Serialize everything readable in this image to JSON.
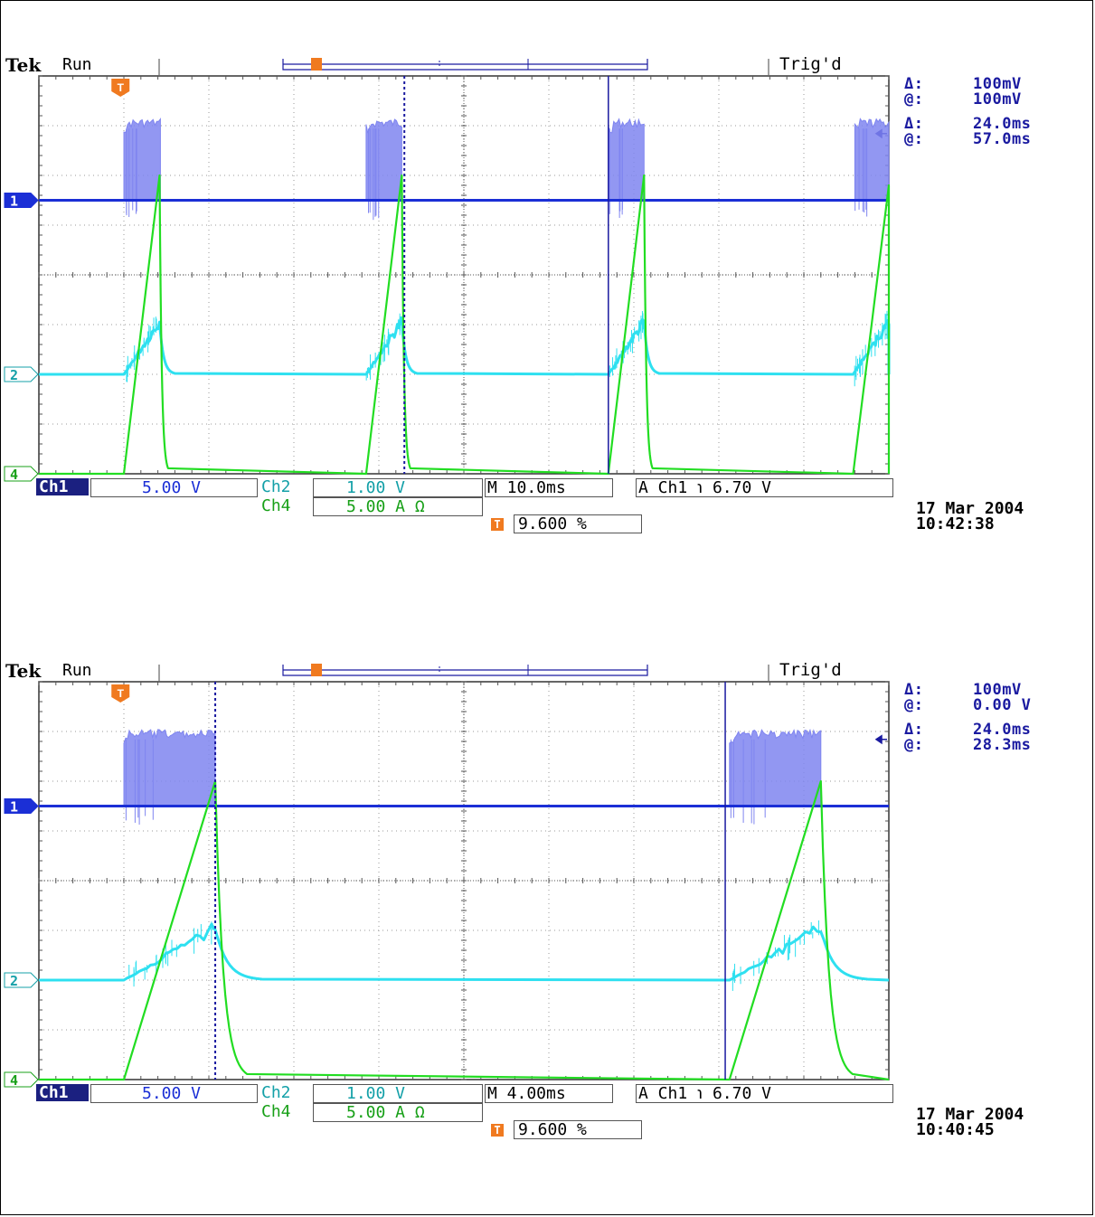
{
  "colors": {
    "ch1": "#1b2fd6",
    "ch1_burst": "#7f85f0",
    "ch2": "#2ee0f0",
    "ch4": "#22dd22",
    "trigger_marker": "#f07a20",
    "cursor": "#1a1aa0"
  },
  "chart_data": [
    {
      "type": "line",
      "instrument": "Tek",
      "run_state": "Run",
      "trigger_state": "Trig'd",
      "grid": true,
      "horizontal_divisions": 10,
      "vertical_divisions": 8,
      "x_unit": "ms",
      "x_range": [
        0,
        100
      ],
      "time_per_div": "M 10.0ms",
      "ch1_scale": "5.00 V",
      "ch2_scale": "1.00 V",
      "ch4_scale": "5.00 A Ω",
      "trigger": "A  Ch1 ℩ 6.70 V",
      "trigger_position": "9.600 %",
      "cursor_readout": [
        {
          "symbol": "Δ:",
          "value": "100mV"
        },
        {
          "symbol": "@:",
          "value": "100mV"
        },
        {
          "symbol": "Δ:",
          "value": "24.0ms"
        },
        {
          "symbol": "@:",
          "value": "57.0ms"
        }
      ],
      "cursor_times_ms": [
        43.0,
        67.0
      ],
      "channel_markers": [
        "1",
        "2",
        "4"
      ],
      "ch1_bursts_ms": [
        [
          10.0,
          14.3
        ],
        [
          38.5,
          42.7
        ],
        [
          67.0,
          71.2
        ],
        [
          96.0,
          100.0
        ]
      ],
      "ch1_baseline_div": 5.5,
      "ch1_burst_top_div": 7.05,
      "series": [
        {
          "name": "Ch2",
          "baseline_div": 2.0,
          "ramps_ms": [
            [
              10.0,
              14.2,
              3.05,
              16.0
            ],
            [
              38.5,
              42.7,
              3.05,
              44.5
            ],
            [
              67.0,
              71.2,
              3.05,
              73.0
            ],
            [
              95.8,
              100.0,
              3.05,
              101.8
            ]
          ]
        },
        {
          "name": "Ch4",
          "baseline_div": 0.0,
          "ramps_ms": [
            [
              10.0,
              14.2,
              6.0,
              15.2
            ],
            [
              38.5,
              42.7,
              6.0,
              43.7
            ],
            [
              67.0,
              71.2,
              6.0,
              72.2
            ],
            [
              95.8,
              100.0,
              5.8,
              101.0
            ]
          ]
        }
      ],
      "date": "17 Mar 2004",
      "time": "10:42:38"
    },
    {
      "type": "line",
      "instrument": "Tek",
      "run_state": "Run",
      "trigger_state": "Trig'd",
      "grid": true,
      "horizontal_divisions": 10,
      "vertical_divisions": 8,
      "x_unit": "ms",
      "x_range": [
        0,
        40
      ],
      "time_per_div": "M 4.00ms",
      "ch1_scale": "5.00 V",
      "ch2_scale": "1.00 V",
      "ch4_scale": "5.00 A Ω",
      "trigger": "A  Ch1 ℩ 6.70 V",
      "trigger_position": "9.600 %",
      "cursor_readout": [
        {
          "symbol": "Δ:",
          "value": "100mV"
        },
        {
          "symbol": "@:",
          "value": "0.00 V"
        },
        {
          "symbol": "Δ:",
          "value": "24.0ms"
        },
        {
          "symbol": "@:",
          "value": "28.3ms"
        }
      ],
      "cursor_times_ms": [
        8.3,
        32.3
      ],
      "channel_markers": [
        "1",
        "2",
        "4"
      ],
      "ch1_bursts_ms": [
        [
          4.0,
          8.3
        ],
        [
          32.5,
          36.8
        ]
      ],
      "ch1_baseline_div": 5.5,
      "ch1_burst_top_div": 6.95,
      "series": [
        {
          "name": "Ch2",
          "baseline_div": 2.0,
          "ramps_ms": [
            [
              4.0,
              8.3,
              3.05,
              10.5
            ],
            [
              32.5,
              36.8,
              3.05,
              39.0
            ]
          ]
        },
        {
          "name": "Ch4",
          "baseline_div": 0.0,
          "ramps_ms": [
            [
              4.0,
              8.3,
              6.0,
              9.8
            ],
            [
              32.5,
              36.8,
              6.0,
              38.3
            ]
          ]
        }
      ],
      "date": "17 Mar 2004",
      "time": "10:40:45"
    }
  ]
}
